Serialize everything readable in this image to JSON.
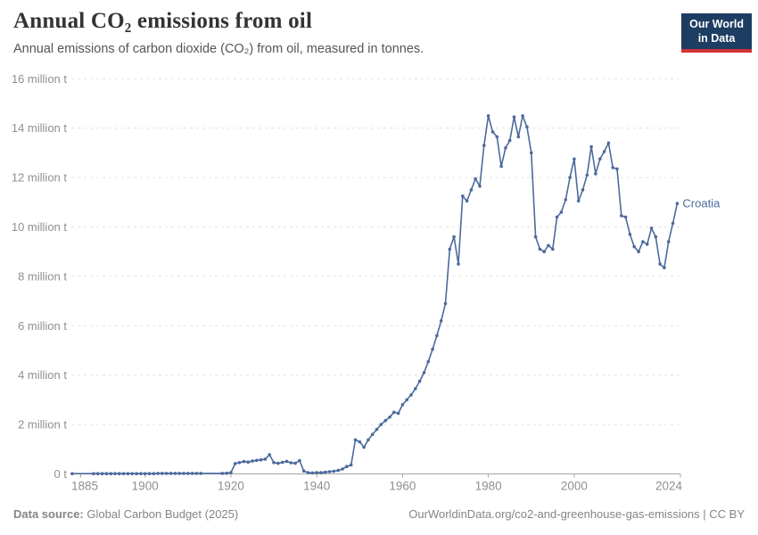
{
  "header": {
    "title": "Annual CO₂ emissions from oil",
    "subtitle": "Annual emissions of carbon dioxide (CO₂) from oil, measured in tonnes.",
    "logo": {
      "line1": "Our World",
      "line2": "in Data",
      "bg_color": "#1d3d63",
      "accent_color": "#d13239"
    }
  },
  "chart_data": {
    "type": "line",
    "title": "Annual CO₂ emissions from oil",
    "unit": "tonnes",
    "value_unit_of_points": "million tonnes",
    "grid": true,
    "legend_position": "end-of-line",
    "xlim": [
      1883,
      2026
    ],
    "ylim_million_t": [
      0,
      16
    ],
    "yticks": [
      {
        "value": 0,
        "label": "0 t"
      },
      {
        "value": 2,
        "label": "2 million t"
      },
      {
        "value": 4,
        "label": "4 million t"
      },
      {
        "value": 6,
        "label": "6 million t"
      },
      {
        "value": 8,
        "label": "8 million t"
      },
      {
        "value": 10,
        "label": "10 million t"
      },
      {
        "value": 12,
        "label": "12 million t"
      },
      {
        "value": 14,
        "label": "14 million t"
      },
      {
        "value": 16,
        "label": "16 million t"
      }
    ],
    "xticks": [
      1885,
      1900,
      1920,
      1940,
      1960,
      1980,
      2000,
      2024
    ],
    "series": [
      {
        "name": "Croatia",
        "color": "#4c6a9c",
        "points": [
          [
            1883,
            0.01
          ],
          [
            1888,
            0.01
          ],
          [
            1889,
            0.01
          ],
          [
            1890,
            0.01
          ],
          [
            1891,
            0.01
          ],
          [
            1892,
            0.01
          ],
          [
            1893,
            0.01
          ],
          [
            1894,
            0.01
          ],
          [
            1895,
            0.01
          ],
          [
            1896,
            0.01
          ],
          [
            1897,
            0.01
          ],
          [
            1898,
            0.01
          ],
          [
            1899,
            0.01
          ],
          [
            1900,
            0.01
          ],
          [
            1901,
            0.01
          ],
          [
            1902,
            0.01
          ],
          [
            1903,
            0.02
          ],
          [
            1904,
            0.02
          ],
          [
            1905,
            0.02
          ],
          [
            1906,
            0.02
          ],
          [
            1907,
            0.02
          ],
          [
            1908,
            0.02
          ],
          [
            1909,
            0.02
          ],
          [
            1910,
            0.02
          ],
          [
            1911,
            0.02
          ],
          [
            1912,
            0.02
          ],
          [
            1913,
            0.02
          ],
          [
            1918,
            0.02
          ],
          [
            1919,
            0.03
          ],
          [
            1920,
            0.05
          ],
          [
            1921,
            0.42
          ],
          [
            1922,
            0.46
          ],
          [
            1923,
            0.5
          ],
          [
            1924,
            0.48
          ],
          [
            1925,
            0.52
          ],
          [
            1926,
            0.55
          ],
          [
            1927,
            0.57
          ],
          [
            1928,
            0.6
          ],
          [
            1929,
            0.78
          ],
          [
            1930,
            0.46
          ],
          [
            1931,
            0.43
          ],
          [
            1932,
            0.47
          ],
          [
            1933,
            0.51
          ],
          [
            1934,
            0.45
          ],
          [
            1935,
            0.43
          ],
          [
            1936,
            0.54
          ],
          [
            1937,
            0.12
          ],
          [
            1938,
            0.05
          ],
          [
            1939,
            0.04
          ],
          [
            1940,
            0.05
          ],
          [
            1941,
            0.05
          ],
          [
            1942,
            0.07
          ],
          [
            1943,
            0.09
          ],
          [
            1944,
            0.11
          ],
          [
            1945,
            0.14
          ],
          [
            1946,
            0.2
          ],
          [
            1947,
            0.3
          ],
          [
            1948,
            0.36
          ],
          [
            1949,
            1.38
          ],
          [
            1950,
            1.3
          ],
          [
            1951,
            1.08
          ],
          [
            1952,
            1.38
          ],
          [
            1953,
            1.6
          ],
          [
            1954,
            1.8
          ],
          [
            1955,
            2.0
          ],
          [
            1956,
            2.16
          ],
          [
            1957,
            2.3
          ],
          [
            1958,
            2.5
          ],
          [
            1959,
            2.45
          ],
          [
            1960,
            2.8
          ],
          [
            1961,
            3.0
          ],
          [
            1962,
            3.2
          ],
          [
            1963,
            3.45
          ],
          [
            1964,
            3.75
          ],
          [
            1965,
            4.1
          ],
          [
            1966,
            4.55
          ],
          [
            1967,
            5.05
          ],
          [
            1968,
            5.6
          ],
          [
            1969,
            6.2
          ],
          [
            1970,
            6.9
          ],
          [
            1971,
            9.1
          ],
          [
            1972,
            9.6
          ],
          [
            1973,
            8.5
          ],
          [
            1974,
            11.25
          ],
          [
            1975,
            11.05
          ],
          [
            1976,
            11.5
          ],
          [
            1977,
            11.95
          ],
          [
            1978,
            11.65
          ],
          [
            1979,
            13.3
          ],
          [
            1980,
            14.5
          ],
          [
            1981,
            13.85
          ],
          [
            1982,
            13.65
          ],
          [
            1983,
            12.45
          ],
          [
            1984,
            13.2
          ],
          [
            1985,
            13.5
          ],
          [
            1986,
            14.45
          ],
          [
            1987,
            13.65
          ],
          [
            1988,
            14.5
          ],
          [
            1989,
            14.05
          ],
          [
            1990,
            13.0
          ],
          [
            1991,
            9.6
          ],
          [
            1992,
            9.1
          ],
          [
            1993,
            9.0
          ],
          [
            1994,
            9.25
          ],
          [
            1995,
            9.1
          ],
          [
            1996,
            10.4
          ],
          [
            1997,
            10.6
          ],
          [
            1998,
            11.1
          ],
          [
            1999,
            12.0
          ],
          [
            2000,
            12.75
          ],
          [
            2001,
            11.05
          ],
          [
            2002,
            11.5
          ],
          [
            2003,
            12.1
          ],
          [
            2004,
            13.25
          ],
          [
            2005,
            12.15
          ],
          [
            2006,
            12.75
          ],
          [
            2007,
            13.05
          ],
          [
            2008,
            13.4
          ],
          [
            2009,
            12.4
          ],
          [
            2010,
            12.35
          ],
          [
            2011,
            10.45
          ],
          [
            2012,
            10.4
          ],
          [
            2013,
            9.7
          ],
          [
            2014,
            9.2
          ],
          [
            2015,
            9.0
          ],
          [
            2016,
            9.4
          ],
          [
            2017,
            9.3
          ],
          [
            2018,
            9.95
          ],
          [
            2019,
            9.6
          ],
          [
            2020,
            8.5
          ],
          [
            2021,
            8.35
          ],
          [
            2022,
            9.4
          ],
          [
            2023,
            10.15
          ],
          [
            2024,
            10.95
          ]
        ]
      }
    ]
  },
  "footer": {
    "source_label": "Data source:",
    "source_text": "Global Carbon Budget (2025)",
    "credit": "OurWorldinData.org/co2-and-greenhouse-gas-emissions | CC BY"
  }
}
